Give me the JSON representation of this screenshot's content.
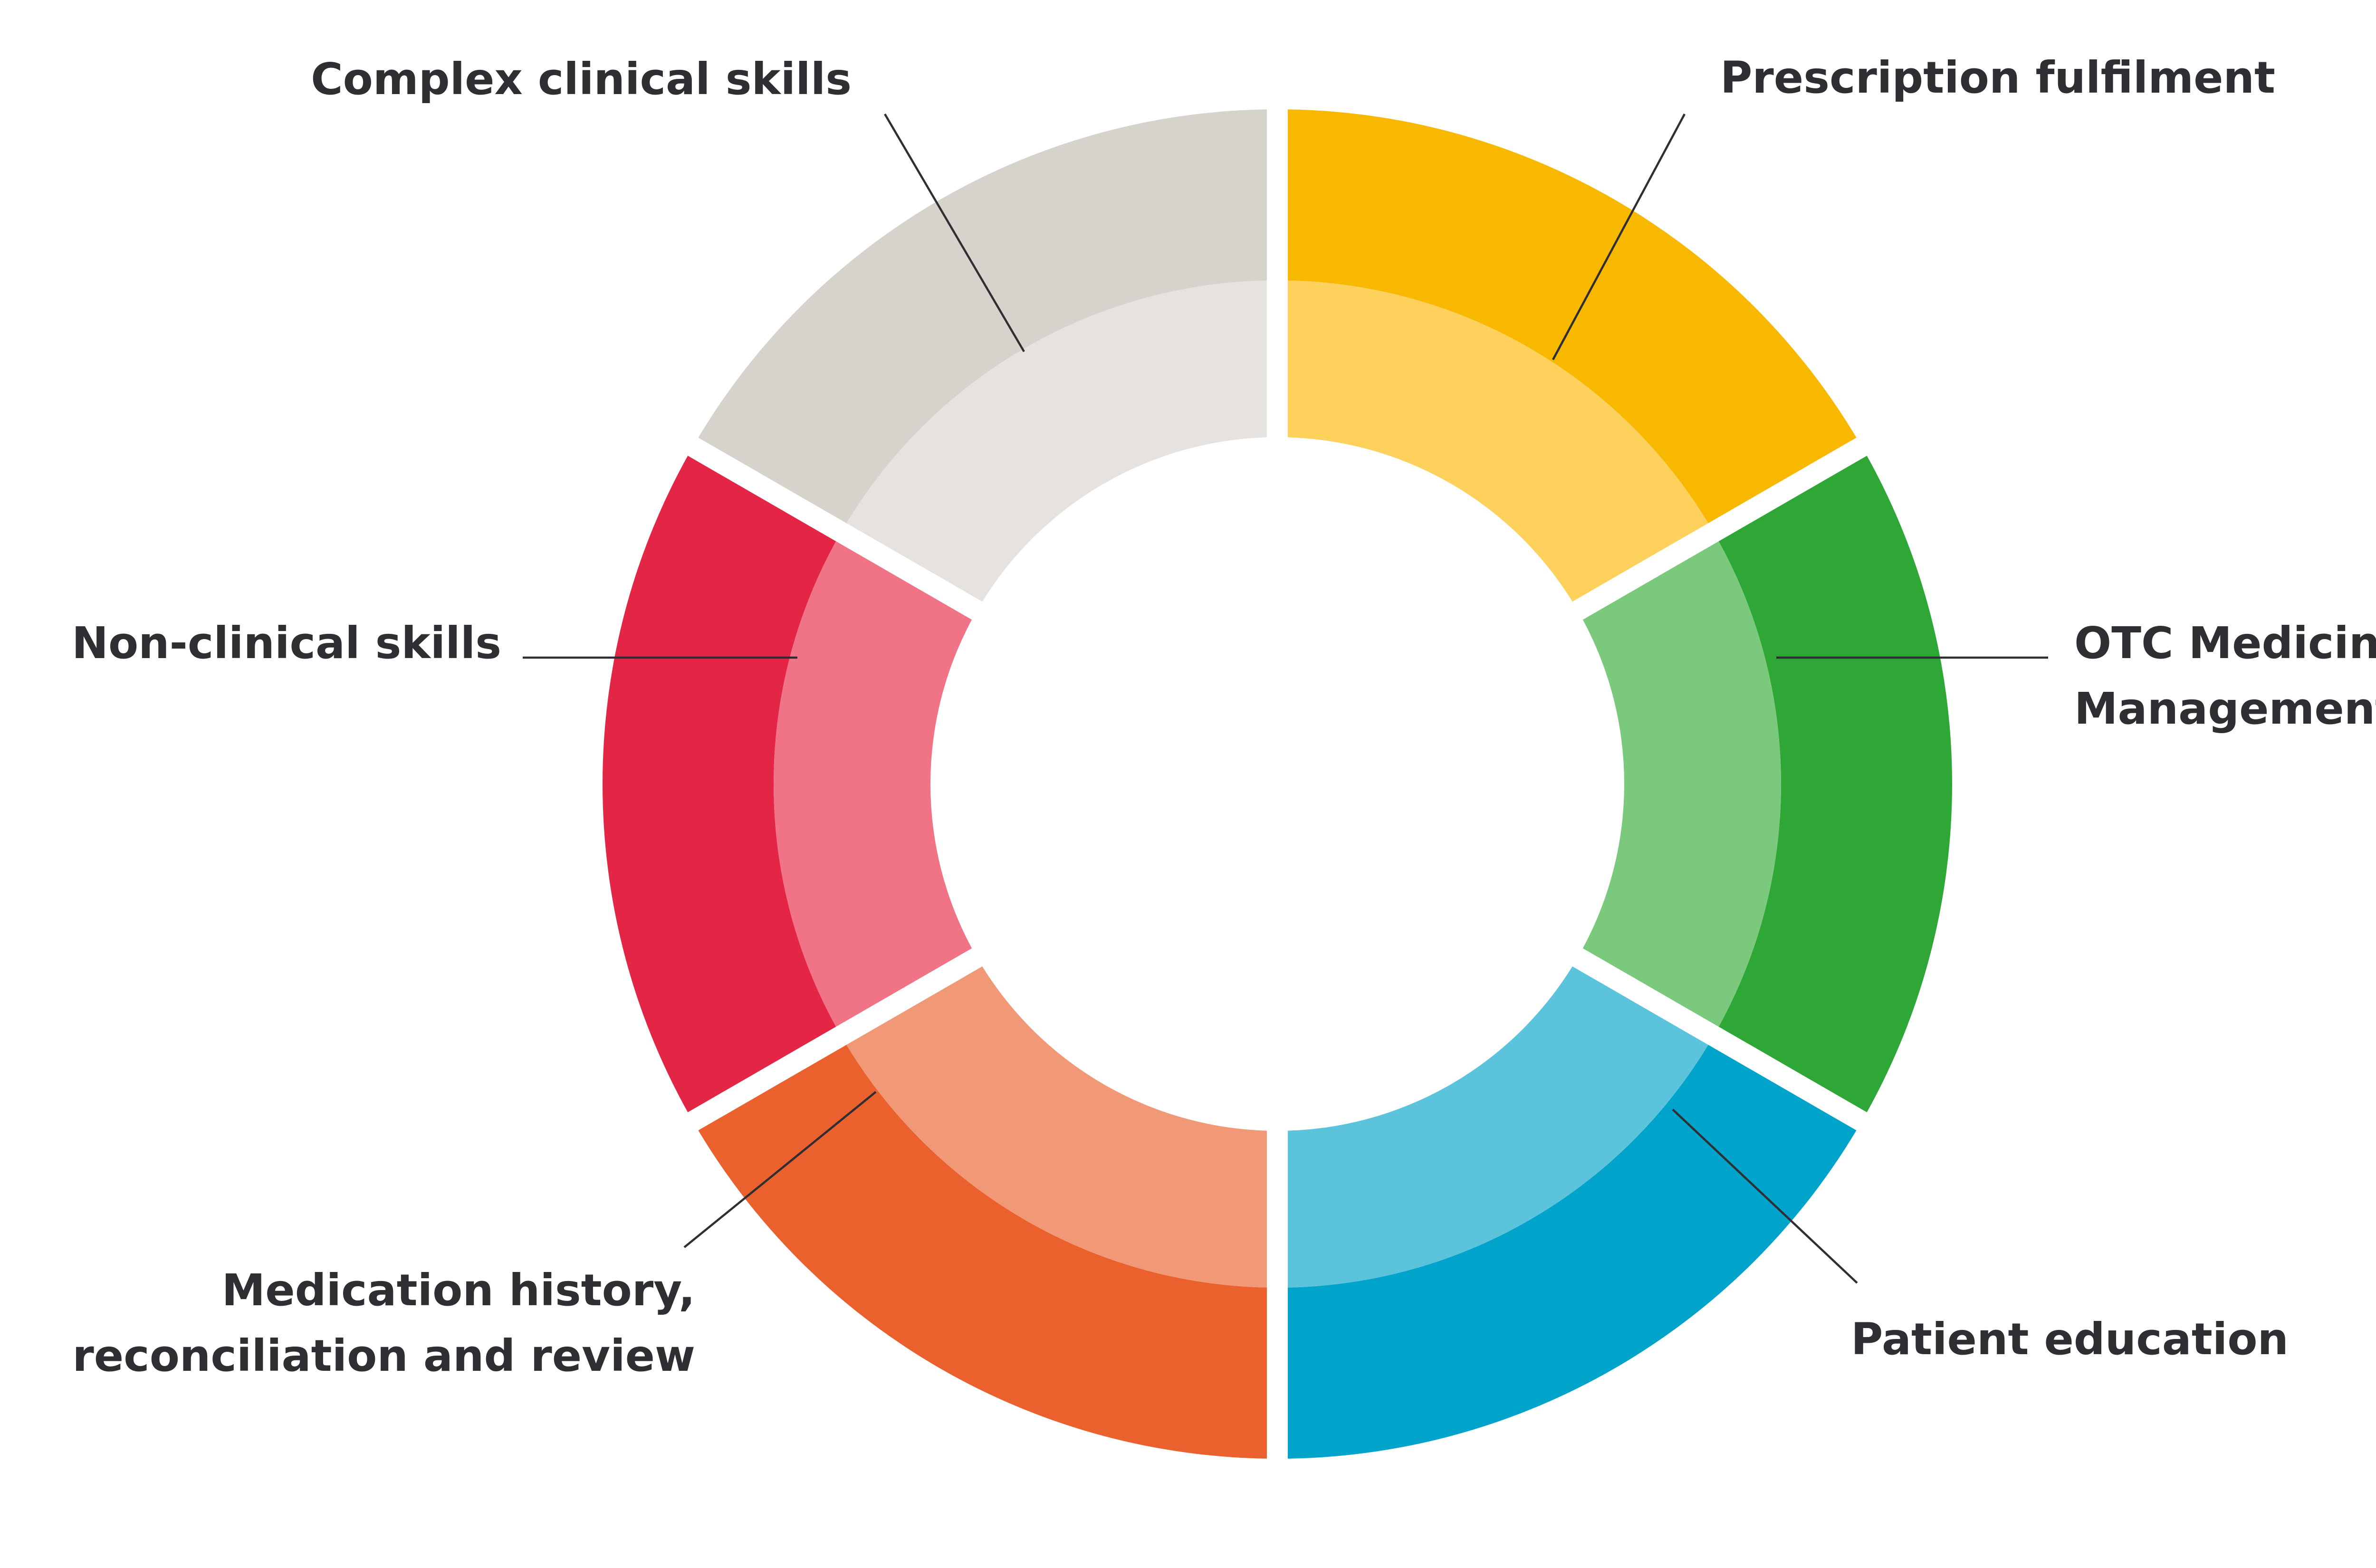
{
  "diagram": {
    "segments": [
      {
        "id": "prescription",
        "lines": [
          "Prescription fulfilment"
        ],
        "outer_color": "#F9B800",
        "inner_color": "#FDD15C"
      },
      {
        "id": "otc",
        "lines": [
          "OTC Medicine",
          "Management"
        ],
        "outer_color": "#2FA737",
        "inner_color": "#7BC97C"
      },
      {
        "id": "patient-education",
        "lines": [
          "Patient education"
        ],
        "outer_color": "#00A3CA",
        "inner_color": "#5BC3DB"
      },
      {
        "id": "medication-history",
        "lines": [
          "Medication history,",
          "reconciliation and review"
        ],
        "outer_color": "#EB612E",
        "inner_color": "#F19877"
      },
      {
        "id": "non-clinical",
        "lines": [
          "Non-clinical skills"
        ],
        "outer_color": "#E42646",
        "inner_color": "#F07386"
      },
      {
        "id": "complex-clinical",
        "lines": [
          "Complex clinical skills"
        ],
        "outer_color": "#D6D2CC",
        "inner_color": "#E5E2DF"
      }
    ],
    "leader_color": "#2E2E33"
  }
}
